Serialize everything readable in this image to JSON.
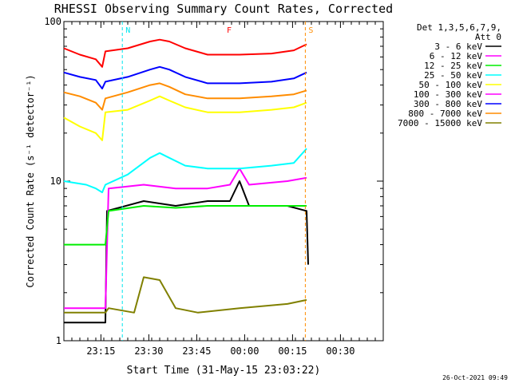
{
  "chart_data": {
    "type": "line",
    "title": "RHESSI Observing Summary Count Rates, Corrected",
    "xlabel": "Start Time (31-May-15 23:03:22)",
    "ylabel": "Corrected Count Rate (s⁻¹ detector⁻¹)",
    "y_scale": "log",
    "ylim": [
      1,
      100
    ],
    "xlim": [
      0,
      100
    ],
    "x_unit": "minutes after 23:03:22",
    "x_ticks": [
      {
        "t": 11.6,
        "label": "23:15"
      },
      {
        "t": 26.6,
        "label": "23:30"
      },
      {
        "t": 41.6,
        "label": "23:45"
      },
      {
        "t": 56.6,
        "label": "00:00"
      },
      {
        "t": 71.6,
        "label": "00:15"
      },
      {
        "t": 86.6,
        "label": "00:30"
      }
    ],
    "y_ticks": [
      {
        "v": 1,
        "label": "1"
      },
      {
        "v": 10,
        "label": "10"
      },
      {
        "v": 100,
        "label": "100"
      }
    ],
    "legend_title_lines": [
      "Det 1,3,5,6,7,9,",
      "Att 0"
    ],
    "legend_position": "right",
    "timestamp": "26-Oct-2021 09:49",
    "flags": [
      {
        "label": "N",
        "t": 18.3,
        "color": "#00e5ee"
      },
      {
        "label": "F",
        "t": 50.0,
        "color": "#ff0000"
      },
      {
        "label": "S",
        "t": 75.6,
        "color": "#ff8c00"
      }
    ],
    "series": [
      {
        "name": "3 - 6 keV",
        "color": "#000000",
        "points": [
          [
            0,
            1.3
          ],
          [
            13,
            1.3
          ],
          [
            13.5,
            6.5
          ],
          [
            25,
            7.5
          ],
          [
            35,
            7
          ],
          [
            45,
            7.5
          ],
          [
            52,
            7.5
          ],
          [
            55,
            10
          ],
          [
            58,
            7
          ],
          [
            70,
            7
          ],
          [
            76,
            6.5
          ],
          [
            76.5,
            3
          ]
        ]
      },
      {
        "name": "6 - 12 keV",
        "color": "#ff00ff",
        "points": [
          [
            0,
            1.6
          ],
          [
            13,
            1.6
          ],
          [
            14,
            9
          ],
          [
            25,
            9.5
          ],
          [
            35,
            9
          ],
          [
            45,
            9
          ],
          [
            52,
            9.5
          ],
          [
            55,
            12
          ],
          [
            58,
            9.5
          ],
          [
            70,
            10
          ],
          [
            76,
            10.5
          ]
        ]
      },
      {
        "name": "12 - 25 keV",
        "color": "#00ee00",
        "points": [
          [
            0,
            4
          ],
          [
            13,
            4
          ],
          [
            14,
            6.5
          ],
          [
            25,
            7
          ],
          [
            35,
            6.8
          ],
          [
            45,
            7
          ],
          [
            60,
            7
          ],
          [
            70,
            7
          ],
          [
            76,
            7
          ]
        ]
      },
      {
        "name": "25 - 50 keV",
        "color": "#00ffff",
        "points": [
          [
            0,
            10
          ],
          [
            7,
            9.5
          ],
          [
            10,
            9
          ],
          [
            12,
            8.5
          ],
          [
            13,
            9.5
          ],
          [
            20,
            11
          ],
          [
            27,
            14
          ],
          [
            30,
            15
          ],
          [
            33,
            14
          ],
          [
            38,
            12.5
          ],
          [
            45,
            12
          ],
          [
            55,
            12
          ],
          [
            65,
            12.5
          ],
          [
            72,
            13
          ],
          [
            76,
            16
          ]
        ]
      },
      {
        "name": "50 - 100 keV",
        "color": "#ffff00",
        "points": [
          [
            0,
            25
          ],
          [
            5,
            22
          ],
          [
            10,
            20
          ],
          [
            12,
            18
          ],
          [
            13,
            27
          ],
          [
            20,
            28
          ],
          [
            27,
            32
          ],
          [
            30,
            34
          ],
          [
            33,
            32
          ],
          [
            38,
            29
          ],
          [
            45,
            27
          ],
          [
            55,
            27
          ],
          [
            65,
            28
          ],
          [
            72,
            29
          ],
          [
            76,
            31
          ]
        ]
      },
      {
        "name": "100 - 300 keV",
        "color": "#ff00ff",
        "points": []
      },
      {
        "name": "300 - 800 keV",
        "color": "#0000ff",
        "points": [
          [
            0,
            48
          ],
          [
            5,
            45
          ],
          [
            10,
            43
          ],
          [
            12,
            38
          ],
          [
            13,
            42
          ],
          [
            20,
            45
          ],
          [
            27,
            50
          ],
          [
            30,
            52
          ],
          [
            33,
            50
          ],
          [
            38,
            45
          ],
          [
            45,
            41
          ],
          [
            55,
            41
          ],
          [
            65,
            42
          ],
          [
            72,
            44
          ],
          [
            76,
            48
          ]
        ]
      },
      {
        "name": "800 - 7000 keV",
        "color": "#ff8c00",
        "points": [
          [
            0,
            36
          ],
          [
            5,
            34
          ],
          [
            10,
            31
          ],
          [
            12,
            28
          ],
          [
            13,
            33
          ],
          [
            20,
            36
          ],
          [
            27,
            40
          ],
          [
            30,
            41
          ],
          [
            33,
            39
          ],
          [
            38,
            35
          ],
          [
            45,
            33
          ],
          [
            55,
            33
          ],
          [
            65,
            34
          ],
          [
            72,
            35
          ],
          [
            76,
            37
          ]
        ]
      },
      {
        "name": "7000 - 15000 keV",
        "color": "#808000",
        "points": [
          [
            0,
            1.5
          ],
          [
            13,
            1.5
          ],
          [
            14,
            1.6
          ],
          [
            22,
            1.5
          ],
          [
            25,
            2.5
          ],
          [
            30,
            2.4
          ],
          [
            35,
            1.6
          ],
          [
            42,
            1.5
          ],
          [
            55,
            1.6
          ],
          [
            70,
            1.7
          ],
          [
            76,
            1.8
          ]
        ]
      },
      {
        "name": "",
        "color": "#ff0000",
        "points": [
          [
            0,
            68
          ],
          [
            5,
            62
          ],
          [
            10,
            58
          ],
          [
            12,
            52
          ],
          [
            13,
            65
          ],
          [
            20,
            68
          ],
          [
            27,
            75
          ],
          [
            30,
            77
          ],
          [
            33,
            75
          ],
          [
            38,
            68
          ],
          [
            45,
            62
          ],
          [
            55,
            62
          ],
          [
            65,
            63
          ],
          [
            72,
            66
          ],
          [
            76,
            72
          ]
        ]
      }
    ]
  }
}
